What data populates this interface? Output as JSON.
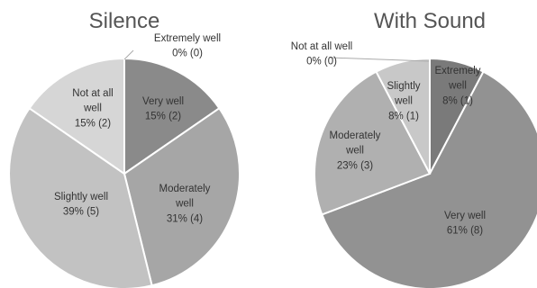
{
  "chart_data": [
    {
      "type": "pie",
      "title": "Silence",
      "slices": [
        {
          "label": "Extremely well",
          "value": 0,
          "pct": "0%",
          "text": "0% (0)",
          "color": "#6e6e6e"
        },
        {
          "label": "Very well",
          "value": 2,
          "pct": "15%",
          "text": "15% (2)",
          "color": "#8a8a8a"
        },
        {
          "label": "Moderately well",
          "value": 4,
          "pct": "31%",
          "text": "31% (4)",
          "color": "#a6a6a6"
        },
        {
          "label": "Slightly well",
          "value": 5,
          "pct": "39%",
          "text": "39% (5)",
          "color": "#c2c2c2"
        },
        {
          "label": "Not at all well",
          "value": 2,
          "pct": "15%",
          "text": "15% (2)",
          "color": "#d6d6d6"
        }
      ]
    },
    {
      "type": "pie",
      "title": "With Sound",
      "slices": [
        {
          "label": "Extremely well",
          "value": 1,
          "pct": "8%",
          "text": "8% (1)",
          "color": "#7a7a7a"
        },
        {
          "label": "Very well",
          "value": 8,
          "pct": "61%",
          "text": "61% (8)",
          "color": "#929292"
        },
        {
          "label": "Moderately well",
          "value": 3,
          "pct": "23%",
          "text": "23% (3)",
          "color": "#b0b0b0"
        },
        {
          "label": "Slightly well",
          "value": 1,
          "pct": "8%",
          "text": "8% (1)",
          "color": "#c8c8c8"
        },
        {
          "label": "Not at all well",
          "value": 0,
          "pct": "0%",
          "text": "0% (0)",
          "color": "#d8d8d8"
        }
      ]
    }
  ]
}
